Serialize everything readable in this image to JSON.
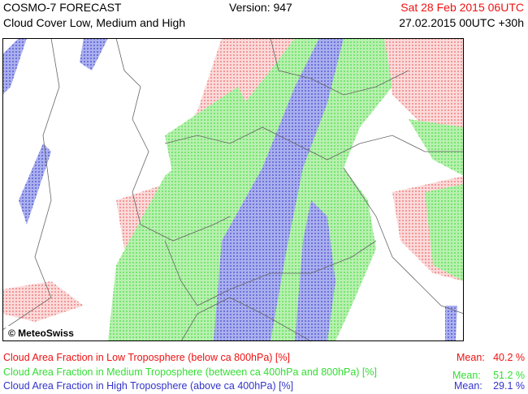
{
  "header": {
    "title": "COSMO-7 FORECAST",
    "subtitle": "Cloud Cover Low, Medium and High",
    "version": "Version: 947",
    "valid_time": "Sat 28 Feb 2015 06UTC",
    "run_time": "27.02.2015 00UTC +30h"
  },
  "map": {
    "copyright": "© MeteoSwiss"
  },
  "legend": [
    {
      "label": "Cloud Area Fraction in Low Troposphere (below ca 800hPa) [%]",
      "mean_label": "Mean:",
      "mean": "40.2 %"
    },
    {
      "label": "Cloud Area Fraction in Medium Troposphere (between ca 400hPa and 800hPa) [%]",
      "mean_label": "Mean:",
      "mean": "51.2 %"
    },
    {
      "label": "Cloud Area Fraction in High Troposphere (above ca 400hPa) [%]",
      "mean_label": "Mean:",
      "mean": "29.1 %"
    }
  ]
}
